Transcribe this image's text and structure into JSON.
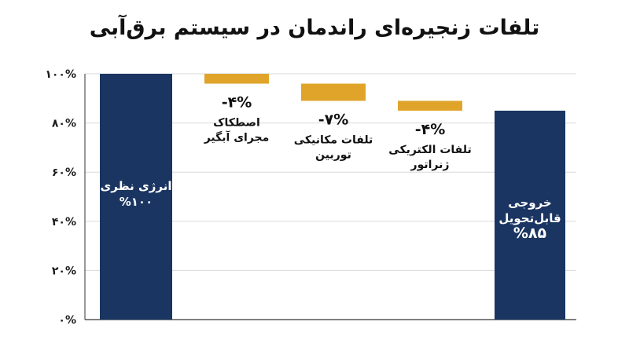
{
  "chart_data": {
    "type": "bar",
    "subtype": "waterfall",
    "title": "تلفات زنجیره‌ای راندمان در سیستم برق‌آبی",
    "xlabel": "",
    "ylabel": "",
    "ylim": [
      0,
      100
    ],
    "grid": true,
    "y_ticks": [
      "۰%",
      "۲۰%",
      "۴۰%",
      "۶۰%",
      "۸۰%",
      "۱۰۰%"
    ],
    "y_tick_values": [
      0,
      20,
      40,
      60,
      80,
      100
    ],
    "colors": {
      "total": "#1a3561",
      "loss": "#e0a42a",
      "grid": "#d9d9d9",
      "axis": "#333333"
    },
    "steps": [
      {
        "kind": "total",
        "start": 0,
        "end": 100,
        "label_lines": [
          "انرژی نظری",
          "%۱۰۰"
        ],
        "value_label": ""
      },
      {
        "kind": "loss",
        "start": 100,
        "end": 96,
        "value_label": "-۴%",
        "label_lines": [
          "اصطکاک",
          "مجرای آبگیر"
        ]
      },
      {
        "kind": "loss",
        "start": 96,
        "end": 89,
        "value_label": "-۷%",
        "label_lines": [
          "تلفات مکانیکی",
          "توربین"
        ]
      },
      {
        "kind": "loss",
        "start": 89,
        "end": 85,
        "value_label": "-۴%",
        "label_lines": [
          "تلفات الکتریکی",
          "ژنراتور"
        ]
      },
      {
        "kind": "total",
        "start": 0,
        "end": 85,
        "label_lines": [
          "خروجی",
          "قابل‌تحویل",
          "%۸۵"
        ],
        "value_label": ""
      }
    ]
  }
}
